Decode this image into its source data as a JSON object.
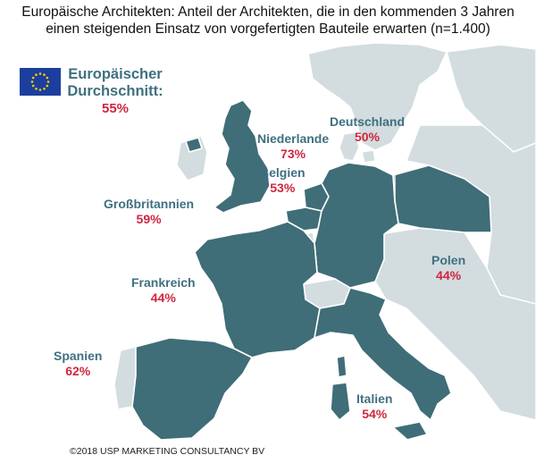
{
  "title": {
    "line1": "Europäische Architekten: Anteil der Architekten, die in den kommenden 3 Jahren",
    "line2": "einen steigenden Einsatz von vorgefertigten Bauteile erwarten (n=1.400)"
  },
  "european_average": {
    "label_line1": "Europäischer",
    "label_line2": "Durchschnitt:",
    "value": "55%",
    "flag_icon": "eu-flag-icon"
  },
  "countries": [
    {
      "id": "niederlande",
      "name": "Niederlande",
      "value": "73%"
    },
    {
      "id": "deutschland",
      "name": "Deutschland",
      "value": "50%"
    },
    {
      "id": "belgien",
      "name": "Belgien",
      "value": "53%"
    },
    {
      "id": "grossbritannien",
      "name": "Großbritannien",
      "value": "59%"
    },
    {
      "id": "polen",
      "name": "Polen",
      "value": "44%"
    },
    {
      "id": "frankreich",
      "name": "Frankreich",
      "value": "44%"
    },
    {
      "id": "spanien",
      "name": "Spanien",
      "value": "62%"
    },
    {
      "id": "italien",
      "name": "Italien",
      "value": "54%"
    }
  ],
  "colors": {
    "highlighted_country": "#3f6d78",
    "other_land": "#d3dcdf",
    "sea": "#ffffff",
    "label": "#3f7080",
    "value": "#d0263e",
    "eu_blue": "#1c3f9e",
    "eu_star": "#ffcc00"
  },
  "copyright": "©2018 USP MARKETING CONSULTANCY BV"
}
